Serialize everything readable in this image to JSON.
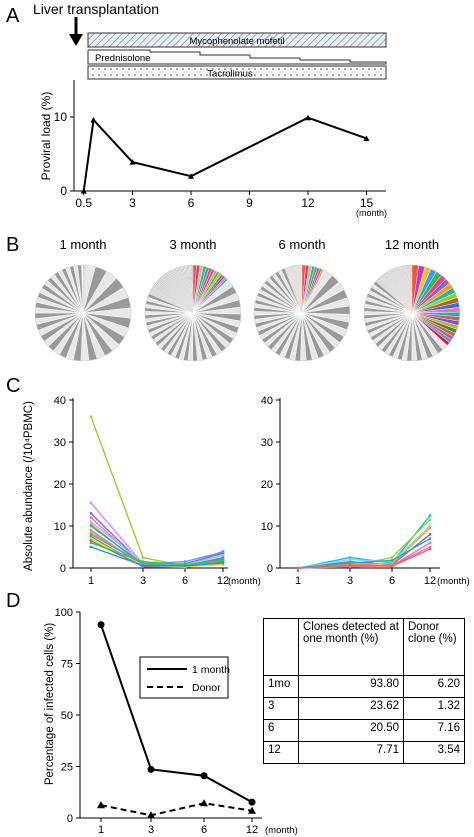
{
  "panel_labels": [
    "A",
    "B",
    "C",
    "D"
  ],
  "panel_a": {
    "event_label": "Liver transplantation",
    "drugs": [
      "Mycophenolate mofetil",
      "Prednisolone",
      "Tacrolimus"
    ],
    "ylabel": "Proviral load (%)",
    "x_unit": "(month)"
  },
  "panel_b": {
    "pie_titles": [
      "1 month",
      "3 month",
      "6 month",
      "12 month"
    ]
  },
  "panel_c": {
    "ylabel": "Absolute abundance (/10⁴PBMC)",
    "x_unit": "(month)"
  },
  "panel_d": {
    "ylabel": "Percentage of infected cells  (%)",
    "x_unit": "(month)",
    "legend": [
      "1 month",
      "Donor"
    ],
    "table": {
      "headers": [
        "",
        "Clones detected at one month (%)",
        "Donor clone (%)"
      ],
      "rows": [
        [
          "1mo",
          "93.80",
          "6.20"
        ],
        [
          "3",
          "23.62",
          "1.32"
        ],
        [
          "6",
          "20.50",
          "7.16"
        ],
        [
          "12",
          "7.71",
          "3.54"
        ]
      ]
    }
  },
  "chart_data": [
    {
      "type": "line",
      "panel": "A",
      "x": [
        0.5,
        1,
        3,
        6,
        12,
        15
      ],
      "y": [
        0,
        9.6,
        3.9,
        2.0,
        9.9,
        7.1
      ],
      "xticks": [
        "0.5",
        "3",
        "6",
        "9",
        "12",
        "15"
      ],
      "xtick_values": [
        0.5,
        3,
        6,
        9,
        12,
        15
      ],
      "yticks": [
        0,
        10
      ],
      "ylim": [
        0,
        15
      ],
      "xlim": [
        0,
        16
      ],
      "xlabel": "(month)",
      "ylabel": "Proviral load (%)"
    },
    {
      "type": "pie",
      "panel": "B",
      "note": "clonal composition at each time point; grey = other clones, colored = expanding clones",
      "titles": [
        "1 month",
        "3 month",
        "6 month",
        "12 month"
      ]
    },
    {
      "type": "line",
      "panel": "C-left",
      "x": [
        1,
        3,
        6,
        12
      ],
      "xticks": [
        "1",
        "3",
        "6",
        "12"
      ],
      "ylim": [
        0,
        40
      ],
      "yticks": [
        0,
        10,
        20,
        30,
        40
      ],
      "ylabel": "Absolute abundance (/10⁴PBMC)",
      "xlabel": "(month)",
      "series": [
        {
          "color": "#9acd32",
          "values": [
            36,
            2.5,
            0.5,
            1.5
          ]
        },
        {
          "color": "#ee82ee",
          "values": [
            15.5,
            1,
            0.5,
            4
          ]
        },
        {
          "color": "#7b68ee",
          "values": [
            13,
            0.8,
            1.0,
            3.5
          ]
        },
        {
          "color": "#ff69b4",
          "values": [
            12,
            0.6,
            0.3,
            2
          ]
        },
        {
          "color": "#87cefa",
          "values": [
            11,
            1.2,
            0.8,
            3
          ]
        },
        {
          "color": "#f4a460",
          "values": [
            10.5,
            0.4,
            0.2,
            1.2
          ]
        },
        {
          "color": "#20b2aa",
          "values": [
            10,
            0.9,
            0.5,
            2.5
          ]
        },
        {
          "color": "#da70d6",
          "values": [
            9,
            0.5,
            0.4,
            2
          ]
        },
        {
          "color": "#ffa500",
          "values": [
            8.5,
            0.7,
            0.3,
            1
          ]
        },
        {
          "color": "#6495ed",
          "values": [
            8,
            1,
            1.5,
            3.8
          ]
        },
        {
          "color": "#3cb371",
          "values": [
            7.5,
            0.3,
            0.2,
            1.5
          ]
        },
        {
          "color": "#ffd700",
          "values": [
            7,
            0.5,
            0.3,
            0.8
          ]
        },
        {
          "color": "#ba55d3",
          "values": [
            6.5,
            0.4,
            0.6,
            2.2
          ]
        },
        {
          "color": "#32cd32",
          "values": [
            6,
            1.5,
            0.8,
            1.8
          ]
        },
        {
          "color": "#1e90ff",
          "values": [
            5,
            0.6,
            0.5,
            1.2
          ]
        }
      ]
    },
    {
      "type": "line",
      "panel": "C-right",
      "x": [
        1,
        3,
        6,
        12
      ],
      "xticks": [
        "1",
        "3",
        "6",
        "12"
      ],
      "ylim": [
        0,
        40
      ],
      "yticks": [
        0,
        10,
        20,
        30,
        40
      ],
      "xlabel": "(month)",
      "series": [
        {
          "color": "#00ced1",
          "values": [
            0,
            2.5,
            1.2,
            12.5
          ]
        },
        {
          "color": "#9acd32",
          "values": [
            0,
            0.5,
            2.5,
            11.5
          ]
        },
        {
          "color": "#ff69b4",
          "values": [
            0,
            0.8,
            0.5,
            6
          ]
        },
        {
          "color": "#7b68ee",
          "values": [
            0,
            1.5,
            0.8,
            8
          ]
        },
        {
          "color": "#ffa500",
          "values": [
            0,
            1.0,
            1.0,
            9.5
          ]
        },
        {
          "color": "#87cefa",
          "values": [
            0,
            2,
            1.5,
            10
          ]
        },
        {
          "color": "#da70d6",
          "values": [
            0,
            0.3,
            0.6,
            5
          ]
        },
        {
          "color": "#20b2aa",
          "values": [
            0,
            1.2,
            1.8,
            7
          ]
        },
        {
          "color": "#ff6347",
          "values": [
            0,
            0.6,
            0.4,
            4.5
          ]
        }
      ]
    },
    {
      "type": "line",
      "panel": "D",
      "x": [
        1,
        3,
        6,
        12
      ],
      "xticks": [
        "1",
        "3",
        "6",
        "12"
      ],
      "ylim": [
        0,
        100
      ],
      "yticks": [
        0,
        25,
        50,
        75,
        100
      ],
      "xlabel": "(month)",
      "ylabel": "Percentage of infected cells  (%)",
      "series": [
        {
          "name": "1 month",
          "values": [
            93.8,
            23.62,
            20.5,
            7.71
          ],
          "style": "solid",
          "marker": "circle"
        },
        {
          "name": "Donor",
          "values": [
            6.2,
            1.32,
            7.16,
            3.54
          ],
          "style": "dashed",
          "marker": "triangle"
        }
      ]
    }
  ]
}
